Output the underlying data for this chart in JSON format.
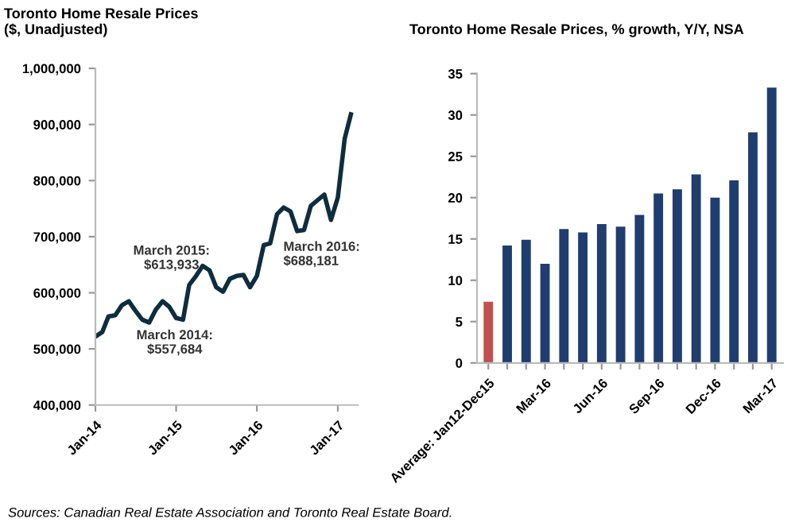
{
  "chart_data": [
    {
      "type": "line",
      "title": "Toronto Home Resale Prices\n($, Unadjusted)",
      "x": [
        "2014-01",
        "2014-02",
        "2014-03",
        "2014-04",
        "2014-05",
        "2014-06",
        "2014-07",
        "2014-08",
        "2014-09",
        "2014-10",
        "2014-11",
        "2014-12",
        "2015-01",
        "2015-02",
        "2015-03",
        "2015-04",
        "2015-05",
        "2015-06",
        "2015-07",
        "2015-08",
        "2015-09",
        "2015-10",
        "2015-11",
        "2015-12",
        "2016-01",
        "2016-02",
        "2016-03",
        "2016-04",
        "2016-05",
        "2016-06",
        "2016-07",
        "2016-08",
        "2016-09",
        "2016-10",
        "2016-11",
        "2016-12",
        "2017-01",
        "2017-02",
        "2017-03"
      ],
      "series": [
        {
          "color": "#0f2d3c",
          "values": [
            522000,
            530000,
            558000,
            560000,
            578000,
            585000,
            568000,
            552000,
            547000,
            570000,
            585000,
            575000,
            555000,
            552000,
            614000,
            630000,
            648000,
            640000,
            610000,
            602000,
            625000,
            630000,
            632000,
            610000,
            630000,
            685000,
            688000,
            740000,
            752000,
            745000,
            710000,
            712000,
            755000,
            765000,
            775000,
            730000,
            770000,
            875000,
            918000
          ]
        }
      ],
      "xlim": [
        "2014-01",
        "2017-04"
      ],
      "xticks": [
        {
          "value": "2014-01",
          "label": "Jan-14"
        },
        {
          "value": "2015-01",
          "label": "Jan-15"
        },
        {
          "value": "2016-01",
          "label": "Jan-16"
        },
        {
          "value": "2017-01",
          "label": "Jan-17"
        }
      ],
      "ylim": [
        400000,
        1000000
      ],
      "yticks": [
        {
          "value": 400000,
          "label": "400,000"
        },
        {
          "value": 500000,
          "label": "500,000"
        },
        {
          "value": 600000,
          "label": "600,000"
        },
        {
          "value": 700000,
          "label": "700,000"
        },
        {
          "value": 800000,
          "label": "800,000"
        },
        {
          "value": 900000,
          "label": "900,000"
        },
        {
          "value": 1000000,
          "label": "1,000,000"
        }
      ],
      "annotations": [
        {
          "text": "March 2014:\n$557,684",
          "x": "2014-03",
          "y": 558000
        },
        {
          "text": "March 2015:\n$613,933",
          "x": "2015-03",
          "y": 614000
        },
        {
          "text": "March 2016:\n$688,181",
          "x": "2016-03",
          "y": 688000
        },
        "Sources: Canadian Real Estate Association and Toronto Real Estate Board."
      ],
      "grid": false,
      "legend": false
    },
    {
      "type": "bar",
      "title": "Toronto Home Resale Prices, % growth, Y/Y, NSA",
      "categories": [
        "Average: Jan12-Dec15",
        null,
        null,
        "Mar-16",
        null,
        null,
        "Jun-16",
        null,
        null,
        "Sep-16",
        null,
        null,
        "Dec-16",
        null,
        null,
        "Mar-17"
      ],
      "values": [
        7.4,
        14.2,
        14.9,
        12.0,
        16.2,
        15.8,
        16.8,
        16.5,
        17.9,
        20.5,
        21.0,
        22.8,
        20.0,
        22.1,
        27.9,
        33.3
      ],
      "colors": [
        "#c0504d",
        "#1f3d6e",
        "#1f3d6e",
        "#1f3d6e",
        "#1f3d6e",
        "#1f3d6e",
        "#1f3d6e",
        "#1f3d6e",
        "#1f3d6e",
        "#1f3d6e",
        "#1f3d6e",
        "#1f3d6e",
        "#1f3d6e",
        "#1f3d6e",
        "#1f3d6e",
        "#1f3d6e"
      ],
      "ylim": [
        0,
        35
      ],
      "yticks": [
        0,
        5,
        10,
        15,
        20,
        25,
        30,
        35
      ],
      "grid": false,
      "legend": false
    }
  ]
}
